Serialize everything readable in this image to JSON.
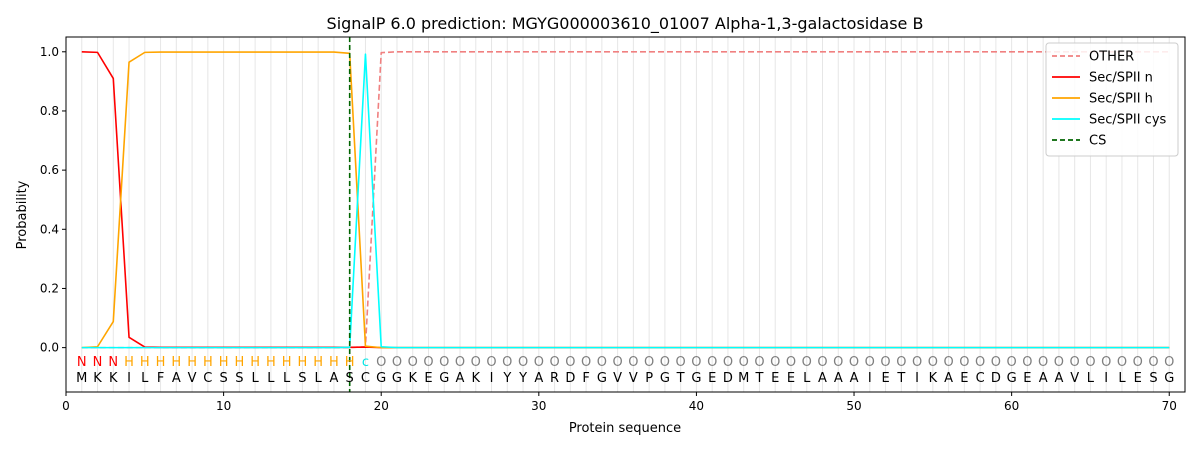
{
  "chart_data": {
    "type": "line",
    "title": "SignalP 6.0 prediction: MGYG000003610_01007 Alpha-1,3-galactosidase B",
    "xlabel": "Protein sequence",
    "ylabel": "Probability",
    "xlim": [
      0,
      71
    ],
    "ylim": [
      -0.15,
      1.05
    ],
    "x_ticks": [
      0,
      10,
      20,
      30,
      40,
      50,
      60,
      70
    ],
    "y_ticks": [
      0.0,
      0.2,
      0.4,
      0.6,
      0.8,
      1.0
    ],
    "x_tick_labels": [
      "0",
      "10",
      "20",
      "30",
      "40",
      "50",
      "60",
      "70"
    ],
    "y_tick_labels": [
      "0.0",
      "0.2",
      "0.4",
      "0.6",
      "0.8",
      "1.0"
    ],
    "legend_position": "top-right",
    "sequence": [
      "M",
      "K",
      "K",
      "I",
      "L",
      "F",
      "A",
      "V",
      "C",
      "S",
      "S",
      "L",
      "L",
      "L",
      "S",
      "L",
      "A",
      "S",
      "C",
      "G",
      "G",
      "K",
      "E",
      "G",
      "A",
      "K",
      "I",
      "Y",
      "Y",
      "A",
      "R",
      "D",
      "F",
      "G",
      "V",
      "V",
      "P",
      "G",
      "T",
      "G",
      "E",
      "D",
      "M",
      "T",
      "E",
      "E",
      "L",
      "A",
      "A",
      "A",
      "I",
      "E",
      "T",
      "I",
      "K",
      "A",
      "E",
      "C",
      "D",
      "G",
      "E",
      "A",
      "A",
      "V",
      "L",
      "I",
      "L",
      "E",
      "S",
      "G"
    ],
    "annotation": [
      "N",
      "N",
      "N",
      "H",
      "H",
      "H",
      "H",
      "H",
      "H",
      "H",
      "H",
      "H",
      "H",
      "H",
      "H",
      "H",
      "H",
      "H",
      "c",
      "O",
      "O",
      "O",
      "O",
      "O",
      "O",
      "O",
      "O",
      "O",
      "O",
      "O",
      "O",
      "O",
      "O",
      "O",
      "O",
      "O",
      "O",
      "O",
      "O",
      "O",
      "O",
      "O",
      "O",
      "O",
      "O",
      "O",
      "O",
      "O",
      "O",
      "O",
      "O",
      "O",
      "O",
      "O",
      "O",
      "O",
      "O",
      "O",
      "O",
      "O",
      "O",
      "O",
      "O",
      "O",
      "O",
      "O",
      "O",
      "O",
      "O",
      "O"
    ],
    "annotation_colors": {
      "N": "#ff0000",
      "H": "#ffa500",
      "c": "#00e5e5",
      "O": "#7f7f7f"
    },
    "series": [
      {
        "name": "OTHER",
        "color": "#f08080",
        "dash": "dashed",
        "values": [
          0,
          0,
          0,
          0,
          0,
          0,
          0,
          0,
          0,
          0,
          0,
          0,
          0,
          0,
          0,
          0,
          0,
          0,
          0.003,
          0.997,
          1,
          1,
          1,
          1,
          1,
          1,
          1,
          1,
          1,
          1,
          1,
          1,
          1,
          1,
          1,
          1,
          1,
          1,
          1,
          1,
          1,
          1,
          1,
          1,
          1,
          1,
          1,
          1,
          1,
          1,
          1,
          1,
          1,
          1,
          1,
          1,
          1,
          1,
          1,
          1,
          1,
          1,
          1,
          1,
          1,
          1,
          1,
          1,
          1,
          1
        ]
      },
      {
        "name": "Sec/SPII n",
        "color": "#ff0000",
        "dash": "solid",
        "values": [
          1.0,
          0.998,
          0.91,
          0.035,
          0.002,
          0.001,
          0.001,
          0.001,
          0.001,
          0.001,
          0.001,
          0.001,
          0.001,
          0.001,
          0.001,
          0.001,
          0.001,
          0.001,
          0.002,
          0,
          0,
          0,
          0,
          0,
          0,
          0,
          0,
          0,
          0,
          0,
          0,
          0,
          0,
          0,
          0,
          0,
          0,
          0,
          0,
          0,
          0,
          0,
          0,
          0,
          0,
          0,
          0,
          0,
          0,
          0,
          0,
          0,
          0,
          0,
          0,
          0,
          0,
          0,
          0,
          0,
          0,
          0,
          0,
          0,
          0,
          0,
          0,
          0,
          0,
          0
        ]
      },
      {
        "name": "Sec/SPII h",
        "color": "#ffa500",
        "dash": "solid",
        "values": [
          0,
          0.003,
          0.088,
          0.965,
          0.998,
          0.999,
          0.999,
          0.999,
          0.999,
          0.999,
          0.999,
          0.999,
          0.999,
          0.999,
          0.999,
          0.999,
          0.999,
          0.995,
          0.005,
          0,
          0,
          0,
          0,
          0,
          0,
          0,
          0,
          0,
          0,
          0,
          0,
          0,
          0,
          0,
          0,
          0,
          0,
          0,
          0,
          0,
          0,
          0,
          0,
          0,
          0,
          0,
          0,
          0,
          0,
          0,
          0,
          0,
          0,
          0,
          0,
          0,
          0,
          0,
          0,
          0,
          0,
          0,
          0,
          0,
          0,
          0,
          0,
          0,
          0,
          0
        ]
      },
      {
        "name": "Sec/SPII cys",
        "color": "#00ffff",
        "dash": "solid",
        "values": [
          0,
          0,
          0,
          0,
          0,
          0,
          0,
          0,
          0,
          0,
          0,
          0,
          0,
          0,
          0,
          0,
          0,
          0.001,
          0.992,
          0.003,
          0,
          0,
          0,
          0,
          0,
          0,
          0,
          0,
          0,
          0,
          0,
          0,
          0,
          0,
          0,
          0,
          0,
          0,
          0,
          0,
          0,
          0,
          0,
          0,
          0,
          0,
          0,
          0,
          0,
          0,
          0,
          0,
          0,
          0,
          0,
          0,
          0,
          0,
          0,
          0,
          0,
          0,
          0,
          0,
          0,
          0,
          0,
          0,
          0,
          0
        ]
      },
      {
        "name": "CS",
        "color": "#006400",
        "dash": "dashed",
        "vline_x": 18
      }
    ]
  }
}
